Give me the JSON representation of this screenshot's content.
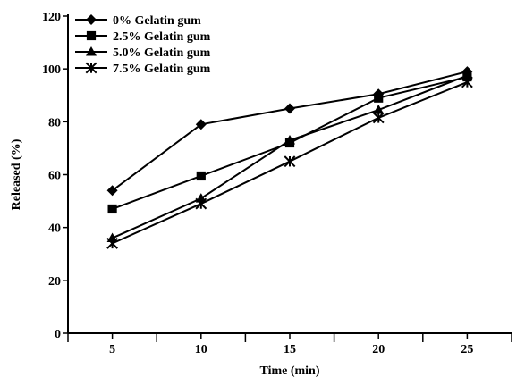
{
  "chart_data": {
    "type": "line",
    "title": "",
    "xlabel": "Time (min)",
    "ylabel": "Released (%)",
    "x": [
      5,
      10,
      15,
      20,
      25
    ],
    "x_ticks": [
      "5",
      "10",
      "15",
      "20",
      "25"
    ],
    "y_ticks": [
      "0",
      "20",
      "40",
      "60",
      "80",
      "100",
      "120"
    ],
    "xlim": [
      2.5,
      27.5
    ],
    "ylim": [
      0,
      120
    ],
    "grid": false,
    "legend_position": "top-left",
    "series": [
      {
        "name": "0%    Gelatin gum",
        "marker": "diamond",
        "color": "#000000",
        "values": [
          54,
          79,
          85,
          90.5,
          99
        ]
      },
      {
        "name": "2.5% Gelatin gum",
        "marker": "square",
        "color": "#000000",
        "values": [
          47,
          59.5,
          72,
          89,
          97
        ]
      },
      {
        "name": "5.0% Gelatin gum",
        "marker": "triangle",
        "color": "#000000",
        "values": [
          36,
          51,
          73,
          84.5,
          97.5
        ]
      },
      {
        "name": "7.5% Gelatin gum",
        "marker": "asterisk",
        "color": "#000000",
        "values": [
          34,
          49,
          65,
          81.5,
          95
        ]
      }
    ]
  }
}
